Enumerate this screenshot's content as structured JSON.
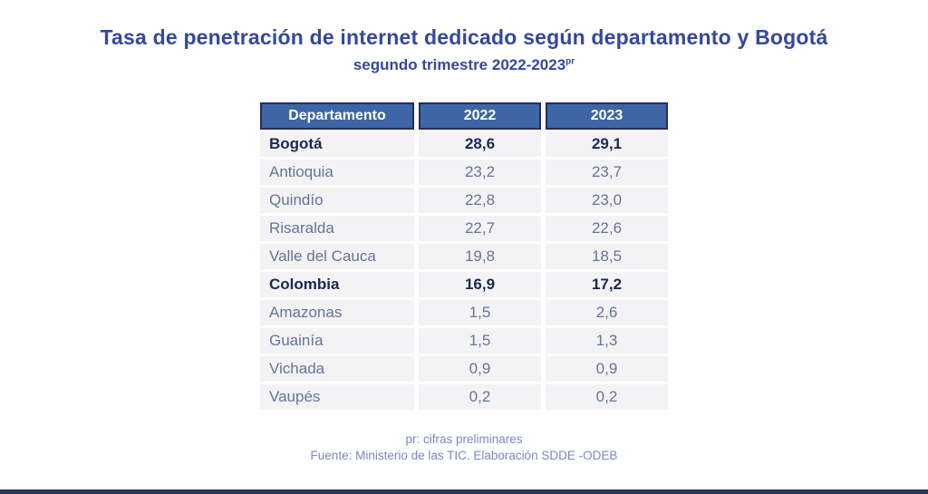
{
  "title": "Tasa de penetración de internet dedicado según departamento y Bogotá",
  "subtitle": {
    "text": "segundo trimestre 2022-2023",
    "superscript": "pr"
  },
  "table": {
    "columns": {
      "departamento": "Departamento",
      "y2022": "2022",
      "y2023": "2023"
    },
    "rows": [
      {
        "departamento": "Bogotá",
        "v2022": "28,6",
        "v2023": "29,1",
        "bold": true
      },
      {
        "departamento": "Antioquia",
        "v2022": "23,2",
        "v2023": "23,7",
        "bold": false
      },
      {
        "departamento": "Quindío",
        "v2022": "22,8",
        "v2023": "23,0",
        "bold": false
      },
      {
        "departamento": "Risaralda",
        "v2022": "22,7",
        "v2023": "22,6",
        "bold": false
      },
      {
        "departamento": "Valle del Cauca",
        "v2022": "19,8",
        "v2023": "18,5",
        "bold": false
      },
      {
        "departamento": "Colombia",
        "v2022": "16,9",
        "v2023": "17,2",
        "bold": true
      },
      {
        "departamento": "Amazonas",
        "v2022": "1,5",
        "v2023": "2,6",
        "bold": false
      },
      {
        "departamento": "Guainía",
        "v2022": "1,5",
        "v2023": "1,3",
        "bold": false
      },
      {
        "departamento": "Vichada",
        "v2022": "0,9",
        "v2023": "0,9",
        "bold": false
      },
      {
        "departamento": "Vaupés",
        "v2022": "0,2",
        "v2023": "0,2",
        "bold": false
      }
    ]
  },
  "footnotes": {
    "line1": "pr: cifras preliminares",
    "line2": "Fuente: Ministerio de las TIC. Elaboración SDDE -ODEB"
  },
  "colors": {
    "title_text": "#35479e",
    "header_bg": "#3e66a6",
    "header_border": "#232c5c",
    "row_bg": "#f3f3f5",
    "row_text": "#66739b",
    "emphasis_text": "#1c2752",
    "footnote_text": "#7d87c3",
    "bottom_bar": "#29355f"
  },
  "chart_data": {
    "type": "table",
    "title": "Tasa de penetración de internet dedicado según departamento y Bogotá",
    "subtitle": "segundo trimestre 2022-2023pr",
    "columns": [
      "Departamento",
      "2022",
      "2023"
    ],
    "rows": [
      [
        "Bogotá",
        28.6,
        29.1
      ],
      [
        "Antioquia",
        23.2,
        23.7
      ],
      [
        "Quindío",
        22.8,
        23.0
      ],
      [
        "Risaralda",
        22.7,
        22.6
      ],
      [
        "Valle del Cauca",
        19.8,
        18.5
      ],
      [
        "Colombia",
        16.9,
        17.2
      ],
      [
        "Amazonas",
        1.5,
        2.6
      ],
      [
        "Guainía",
        1.5,
        1.3
      ],
      [
        "Vichada",
        0.9,
        0.9
      ],
      [
        "Vaupés",
        0.2,
        0.2
      ]
    ],
    "emphasized_rows": [
      "Bogotá",
      "Colombia"
    ],
    "notes": [
      "pr: cifras preliminares",
      "Fuente: Ministerio de las TIC. Elaboración SDDE -ODEB"
    ],
    "decimal_separator": ","
  }
}
